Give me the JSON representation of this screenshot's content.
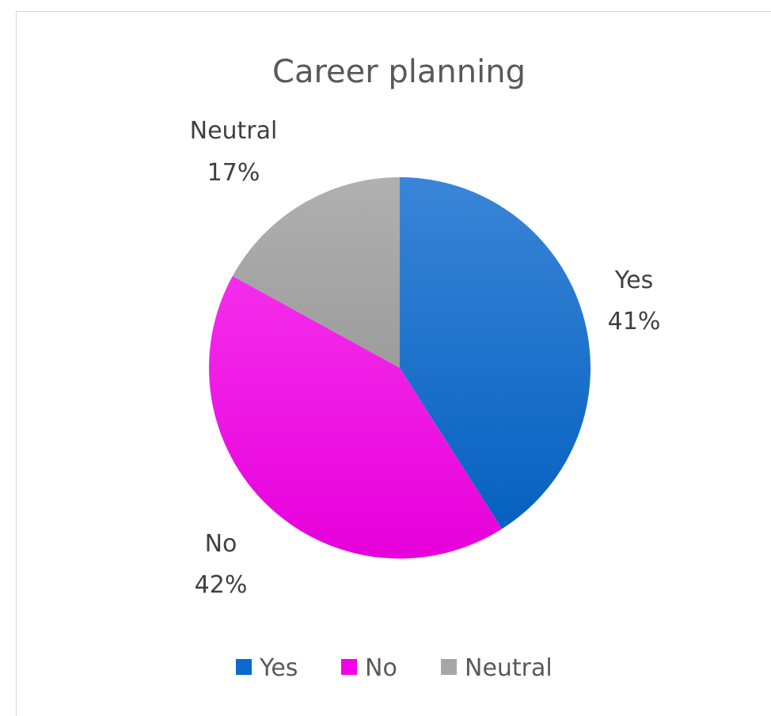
{
  "chart_data": {
    "type": "pie",
    "title": "Career planning",
    "categories": [
      "Yes",
      "No",
      "Neutral"
    ],
    "values": [
      41,
      42,
      17
    ],
    "value_labels": [
      "41%",
      "42%",
      "17%"
    ],
    "colors": [
      "#0A6ACF",
      "#F200E6",
      "#A6A6A6"
    ],
    "legend_position": "bottom",
    "start_angle_direction": "clockwise from 12 o'clock"
  }
}
